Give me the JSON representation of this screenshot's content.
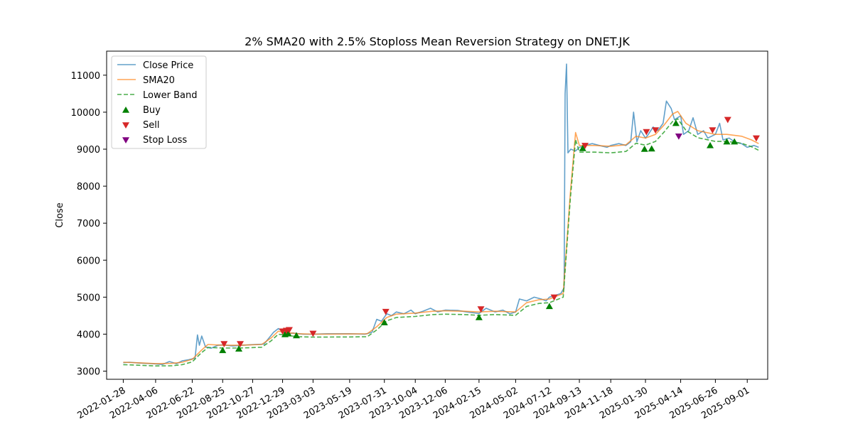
{
  "chart_data": {
    "type": "line",
    "title": "2% SMA20 with 2.5% Stoploss Mean Reversion Strategy on DNET.JK",
    "xlabel": "",
    "ylabel": "Close",
    "xlim": [
      "2021-12-24",
      "2025-10-14"
    ],
    "ylim": [
      2780,
      11650
    ],
    "y_ticks": [
      3000,
      4000,
      5000,
      6000,
      7000,
      8000,
      9000,
      10000,
      11000
    ],
    "x_ticks": [
      "2022-01-28",
      "2022-04-06",
      "2022-06-22",
      "2022-08-25",
      "2022-10-27",
      "2022-12-29",
      "2023-03-03",
      "2023-05-19",
      "2023-07-31",
      "2023-10-04",
      "2023-12-06",
      "2024-02-15",
      "2024-05-02",
      "2024-07-12",
      "2024-09-13",
      "2024-11-18",
      "2025-01-30",
      "2025-04-14",
      "2025-06-26",
      "2025-09-01"
    ],
    "grid": false,
    "legend_position": "top-left",
    "series": [
      {
        "name": "Close Price",
        "color": "#1f77b4",
        "style": "solid",
        "points": [
          [
            "2022-01-28",
            3230
          ],
          [
            "2022-02-10",
            3240
          ],
          [
            "2022-03-01",
            3220
          ],
          [
            "2022-04-01",
            3200
          ],
          [
            "2022-04-20",
            3180
          ],
          [
            "2022-05-05",
            3260
          ],
          [
            "2022-05-20",
            3200
          ],
          [
            "2022-06-01",
            3280
          ],
          [
            "2022-06-15",
            3310
          ],
          [
            "2022-06-28",
            3350
          ],
          [
            "2022-07-03",
            3980
          ],
          [
            "2022-07-07",
            3700
          ],
          [
            "2022-07-12",
            3950
          ],
          [
            "2022-07-20",
            3650
          ],
          [
            "2022-08-01",
            3620
          ],
          [
            "2022-08-15",
            3700
          ],
          [
            "2022-08-25",
            3710
          ],
          [
            "2022-09-15",
            3680
          ],
          [
            "2022-10-05",
            3700
          ],
          [
            "2022-11-01",
            3720
          ],
          [
            "2022-11-20",
            3730
          ],
          [
            "2022-12-10",
            4050
          ],
          [
            "2022-12-20",
            4150
          ],
          [
            "2022-12-29",
            4080
          ],
          [
            "2023-01-05",
            4000
          ],
          [
            "2023-01-20",
            4030
          ],
          [
            "2023-02-10",
            4000
          ],
          [
            "2023-03-03",
            4000
          ],
          [
            "2023-04-01",
            4010
          ],
          [
            "2023-05-19",
            4010
          ],
          [
            "2023-06-20",
            4000
          ],
          [
            "2023-07-05",
            4050
          ],
          [
            "2023-07-15",
            4400
          ],
          [
            "2023-07-25",
            4350
          ],
          [
            "2023-08-05",
            4550
          ],
          [
            "2023-08-15",
            4500
          ],
          [
            "2023-08-25",
            4600
          ],
          [
            "2023-09-10",
            4550
          ],
          [
            "2023-09-25",
            4650
          ],
          [
            "2023-10-04",
            4550
          ],
          [
            "2023-10-20",
            4620
          ],
          [
            "2023-11-05",
            4700
          ],
          [
            "2023-11-20",
            4600
          ],
          [
            "2023-12-06",
            4650
          ],
          [
            "2024-01-01",
            4640
          ],
          [
            "2024-01-20",
            4600
          ],
          [
            "2024-02-15",
            4560
          ],
          [
            "2024-03-01",
            4700
          ],
          [
            "2024-03-20",
            4600
          ],
          [
            "2024-04-05",
            4650
          ],
          [
            "2024-04-20",
            4550
          ],
          [
            "2024-05-02",
            4600
          ],
          [
            "2024-05-10",
            4950
          ],
          [
            "2024-05-25",
            4900
          ],
          [
            "2024-06-10",
            5000
          ],
          [
            "2024-06-25",
            4950
          ],
          [
            "2024-07-05",
            4900
          ],
          [
            "2024-07-12",
            5000
          ],
          [
            "2024-07-25",
            5050
          ],
          [
            "2024-08-05",
            5100
          ],
          [
            "2024-08-12",
            5250
          ],
          [
            "2024-08-14",
            10500
          ],
          [
            "2024-08-17",
            11300
          ],
          [
            "2024-08-20",
            8900
          ],
          [
            "2024-08-26",
            9000
          ],
          [
            "2024-09-05",
            8950
          ],
          [
            "2024-09-13",
            9050
          ],
          [
            "2024-09-25",
            9100
          ],
          [
            "2024-10-10",
            9150
          ],
          [
            "2024-10-25",
            9100
          ],
          [
            "2024-11-10",
            9050
          ],
          [
            "2024-11-18",
            9100
          ],
          [
            "2024-12-05",
            9150
          ],
          [
            "2024-12-20",
            9100
          ],
          [
            "2024-12-30",
            9200
          ],
          [
            "2025-01-05",
            10000
          ],
          [
            "2025-01-12",
            9200
          ],
          [
            "2025-01-20",
            9500
          ],
          [
            "2025-01-30",
            9300
          ],
          [
            "2025-02-05",
            9400
          ],
          [
            "2025-02-15",
            9600
          ],
          [
            "2025-02-25",
            9500
          ],
          [
            "2025-03-08",
            9700
          ],
          [
            "2025-03-15",
            10300
          ],
          [
            "2025-03-25",
            10100
          ],
          [
            "2025-04-01",
            9800
          ],
          [
            "2025-04-14",
            9900
          ],
          [
            "2025-04-20",
            9400
          ],
          [
            "2025-05-01",
            9500
          ],
          [
            "2025-05-10",
            9850
          ],
          [
            "2025-05-20",
            9400
          ],
          [
            "2025-06-01",
            9500
          ],
          [
            "2025-06-10",
            9300
          ],
          [
            "2025-06-26",
            9400
          ],
          [
            "2025-07-05",
            9700
          ],
          [
            "2025-07-12",
            9250
          ],
          [
            "2025-07-25",
            9300
          ],
          [
            "2025-08-05",
            9200
          ],
          [
            "2025-08-20",
            9150
          ],
          [
            "2025-09-01",
            9050
          ],
          [
            "2025-09-15",
            9100
          ],
          [
            "2025-09-25",
            9050
          ]
        ]
      },
      {
        "name": "SMA20",
        "color": "#ff7f0e",
        "style": "solid",
        "points": [
          [
            "2022-01-28",
            3240
          ],
          [
            "2022-03-01",
            3225
          ],
          [
            "2022-04-06",
            3205
          ],
          [
            "2022-05-10",
            3210
          ],
          [
            "2022-06-01",
            3240
          ],
          [
            "2022-06-22",
            3320
          ],
          [
            "2022-07-10",
            3550
          ],
          [
            "2022-07-25",
            3720
          ],
          [
            "2022-08-25",
            3700
          ],
          [
            "2022-10-01",
            3700
          ],
          [
            "2022-11-15",
            3720
          ],
          [
            "2022-12-05",
            3900
          ],
          [
            "2022-12-20",
            4080
          ],
          [
            "2023-01-10",
            4040
          ],
          [
            "2023-02-01",
            4010
          ],
          [
            "2023-03-03",
            4000
          ],
          [
            "2023-05-19",
            4005
          ],
          [
            "2023-06-25",
            4010
          ],
          [
            "2023-07-15",
            4200
          ],
          [
            "2023-08-05",
            4450
          ],
          [
            "2023-08-25",
            4540
          ],
          [
            "2023-10-04",
            4570
          ],
          [
            "2023-11-10",
            4620
          ],
          [
            "2023-12-06",
            4630
          ],
          [
            "2024-01-15",
            4620
          ],
          [
            "2024-02-15",
            4600
          ],
          [
            "2024-03-20",
            4620
          ],
          [
            "2024-05-02",
            4600
          ],
          [
            "2024-05-25",
            4850
          ],
          [
            "2024-06-20",
            4930
          ],
          [
            "2024-07-12",
            4950
          ],
          [
            "2024-08-10",
            5100
          ],
          [
            "2024-08-25",
            7800
          ],
          [
            "2024-09-05",
            9450
          ],
          [
            "2024-09-13",
            9100
          ],
          [
            "2024-10-15",
            9100
          ],
          [
            "2024-11-18",
            9080
          ],
          [
            "2024-12-20",
            9120
          ],
          [
            "2025-01-10",
            9350
          ],
          [
            "2025-01-30",
            9300
          ],
          [
            "2025-02-20",
            9400
          ],
          [
            "2025-03-10",
            9650
          ],
          [
            "2025-03-28",
            9950
          ],
          [
            "2025-04-08",
            10020
          ],
          [
            "2025-04-25",
            9700
          ],
          [
            "2025-05-20",
            9500
          ],
          [
            "2025-06-26",
            9400
          ],
          [
            "2025-07-20",
            9400
          ],
          [
            "2025-08-20",
            9350
          ],
          [
            "2025-09-10",
            9250
          ],
          [
            "2025-09-25",
            9150
          ]
        ]
      },
      {
        "name": "Lower Band",
        "color": "#2ca02c",
        "style": "dashed",
        "points": [
          [
            "2022-01-28",
            3175
          ],
          [
            "2022-03-01",
            3160
          ],
          [
            "2022-04-06",
            3140
          ],
          [
            "2022-05-10",
            3145
          ],
          [
            "2022-06-01",
            3175
          ],
          [
            "2022-06-22",
            3250
          ],
          [
            "2022-07-10",
            3480
          ],
          [
            "2022-07-25",
            3640
          ],
          [
            "2022-08-25",
            3625
          ],
          [
            "2022-10-01",
            3625
          ],
          [
            "2022-11-15",
            3645
          ],
          [
            "2022-12-05",
            3820
          ],
          [
            "2022-12-20",
            4000
          ],
          [
            "2023-01-10",
            3960
          ],
          [
            "2023-02-01",
            3930
          ],
          [
            "2023-03-03",
            3920
          ],
          [
            "2023-05-19",
            3925
          ],
          [
            "2023-06-25",
            3930
          ],
          [
            "2023-07-15",
            4115
          ],
          [
            "2023-08-05",
            4360
          ],
          [
            "2023-08-25",
            4450
          ],
          [
            "2023-10-04",
            4480
          ],
          [
            "2023-11-10",
            4530
          ],
          [
            "2023-12-06",
            4540
          ],
          [
            "2024-01-15",
            4530
          ],
          [
            "2024-02-15",
            4510
          ],
          [
            "2024-03-20",
            4530
          ],
          [
            "2024-05-02",
            4510
          ],
          [
            "2024-05-25",
            4750
          ],
          [
            "2024-06-20",
            4830
          ],
          [
            "2024-07-12",
            4850
          ],
          [
            "2024-08-10",
            5000
          ],
          [
            "2024-08-25",
            7650
          ],
          [
            "2024-09-05",
            9260
          ],
          [
            "2024-09-13",
            8920
          ],
          [
            "2024-10-15",
            8920
          ],
          [
            "2024-11-18",
            8900
          ],
          [
            "2024-12-20",
            8940
          ],
          [
            "2025-01-10",
            9160
          ],
          [
            "2025-01-30",
            9110
          ],
          [
            "2025-02-20",
            9210
          ],
          [
            "2025-03-10",
            9460
          ],
          [
            "2025-03-28",
            9750
          ],
          [
            "2025-04-08",
            9820
          ],
          [
            "2025-04-25",
            9510
          ],
          [
            "2025-05-20",
            9310
          ],
          [
            "2025-06-26",
            9210
          ],
          [
            "2025-07-20",
            9210
          ],
          [
            "2025-08-20",
            9160
          ],
          [
            "2025-09-10",
            9065
          ],
          [
            "2025-09-25",
            8970
          ]
        ]
      }
    ],
    "markers": [
      {
        "name": "Buy",
        "shape": "triangle-up",
        "color": "#008000",
        "points": [
          [
            "2022-08-25",
            3560
          ],
          [
            "2022-09-28",
            3600
          ],
          [
            "2023-01-03",
            3990
          ],
          [
            "2023-01-10",
            4010
          ],
          [
            "2023-01-27",
            3960
          ],
          [
            "2023-07-31",
            4310
          ],
          [
            "2024-02-15",
            4450
          ],
          [
            "2024-07-12",
            4750
          ],
          [
            "2024-09-20",
            9020
          ],
          [
            "2025-01-28",
            9000
          ],
          [
            "2025-02-12",
            9010
          ],
          [
            "2025-04-04",
            9700
          ],
          [
            "2025-06-15",
            9100
          ],
          [
            "2025-07-20",
            9200
          ],
          [
            "2025-08-05",
            9200
          ]
        ]
      },
      {
        "name": "Sell",
        "shape": "triangle-down",
        "color": "#d62728",
        "points": [
          [
            "2022-08-28",
            3740
          ],
          [
            "2022-10-01",
            3740
          ],
          [
            "2022-12-29",
            4080
          ],
          [
            "2023-01-06",
            4100
          ],
          [
            "2023-01-12",
            4120
          ],
          [
            "2023-03-03",
            4020
          ],
          [
            "2023-08-03",
            4610
          ],
          [
            "2024-02-19",
            4680
          ],
          [
            "2024-07-22",
            5000
          ],
          [
            "2024-09-25",
            9100
          ],
          [
            "2025-02-01",
            9470
          ],
          [
            "2025-02-20",
            9520
          ],
          [
            "2025-06-20",
            9520
          ],
          [
            "2025-07-22",
            9800
          ],
          [
            "2025-09-20",
            9300
          ]
        ]
      },
      {
        "name": "Stop Loss",
        "shape": "triangle-down",
        "color": "#800080",
        "points": [
          [
            "2025-04-10",
            9350
          ]
        ]
      }
    ]
  }
}
